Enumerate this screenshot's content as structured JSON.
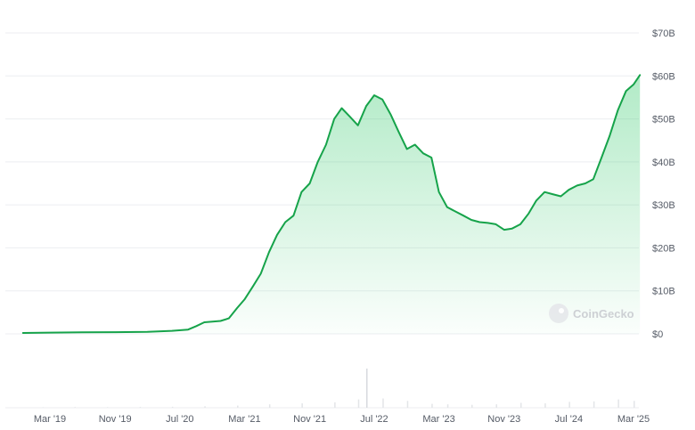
{
  "chart_data": {
    "type": "area",
    "title": "",
    "xlabel": "",
    "ylabel": "",
    "ylim": [
      0,
      70
    ],
    "y_unit": "B USD",
    "y_ticks": [
      0,
      10,
      20,
      30,
      40,
      50,
      60,
      70
    ],
    "y_tick_labels": [
      "$0",
      "$10B",
      "$20B",
      "$30B",
      "$40B",
      "$50B",
      "$60B",
      "$70B"
    ],
    "x_ticks": [
      {
        "date": "2019-03-01",
        "label": "Mar '19"
      },
      {
        "date": "2019-11-01",
        "label": "Nov '19"
      },
      {
        "date": "2020-07-01",
        "label": "Jul '20"
      },
      {
        "date": "2021-03-01",
        "label": "Mar '21"
      },
      {
        "date": "2021-11-01",
        "label": "Nov '21"
      },
      {
        "date": "2022-07-01",
        "label": "Jul '22"
      },
      {
        "date": "2023-03-01",
        "label": "Mar '23"
      },
      {
        "date": "2023-11-01",
        "label": "Nov '23"
      },
      {
        "date": "2024-07-01",
        "label": "Jul '24"
      },
      {
        "date": "2025-03-01",
        "label": "Mar '25"
      }
    ],
    "grid": true,
    "legend": "none",
    "series": [
      {
        "color": "#16a34a",
        "points": [
          [
            "2018-11-20",
            0.2
          ],
          [
            "2019-03-01",
            0.3
          ],
          [
            "2019-07-01",
            0.35
          ],
          [
            "2019-11-01",
            0.4
          ],
          [
            "2020-03-01",
            0.45
          ],
          [
            "2020-06-01",
            0.7
          ],
          [
            "2020-08-01",
            1.0
          ],
          [
            "2020-09-01",
            1.8
          ],
          [
            "2020-10-01",
            2.7
          ],
          [
            "2020-12-01",
            3.0
          ],
          [
            "2021-01-01",
            3.6
          ],
          [
            "2021-02-01",
            6.0
          ],
          [
            "2021-03-01",
            8.0
          ],
          [
            "2021-04-01",
            11.0
          ],
          [
            "2021-05-01",
            14.0
          ],
          [
            "2021-06-01",
            19.0
          ],
          [
            "2021-07-01",
            23.0
          ],
          [
            "2021-08-01",
            26.0
          ],
          [
            "2021-09-01",
            27.5
          ],
          [
            "2021-10-01",
            33.0
          ],
          [
            "2021-11-01",
            35.0
          ],
          [
            "2021-12-01",
            40.0
          ],
          [
            "2022-01-01",
            44.0
          ],
          [
            "2022-02-01",
            50.0
          ],
          [
            "2022-03-01",
            52.5
          ],
          [
            "2022-04-01",
            50.5
          ],
          [
            "2022-05-01",
            48.5
          ],
          [
            "2022-06-01",
            53.0
          ],
          [
            "2022-07-01",
            55.5
          ],
          [
            "2022-08-01",
            54.5
          ],
          [
            "2022-09-01",
            51.0
          ],
          [
            "2022-10-01",
            47.0
          ],
          [
            "2022-11-01",
            43.0
          ],
          [
            "2022-12-01",
            44.0
          ],
          [
            "2023-01-01",
            42.0
          ],
          [
            "2023-02-01",
            41.0
          ],
          [
            "2023-03-01",
            33.0
          ],
          [
            "2023-04-01",
            29.5
          ],
          [
            "2023-05-01",
            28.5
          ],
          [
            "2023-06-01",
            27.5
          ],
          [
            "2023-07-01",
            26.5
          ],
          [
            "2023-08-01",
            26.0
          ],
          [
            "2023-09-01",
            25.8
          ],
          [
            "2023-10-01",
            25.5
          ],
          [
            "2023-11-01",
            24.2
          ],
          [
            "2023-12-01",
            24.5
          ],
          [
            "2024-01-01",
            25.5
          ],
          [
            "2024-02-01",
            28.0
          ],
          [
            "2024-03-01",
            31.0
          ],
          [
            "2024-04-01",
            33.0
          ],
          [
            "2024-05-01",
            32.5
          ],
          [
            "2024-06-01",
            32.0
          ],
          [
            "2024-07-01",
            33.5
          ],
          [
            "2024-08-01",
            34.5
          ],
          [
            "2024-09-01",
            35.0
          ],
          [
            "2024-10-01",
            36.0
          ],
          [
            "2024-11-01",
            41.0
          ],
          [
            "2024-12-01",
            46.0
          ],
          [
            "2025-01-01",
            52.0
          ],
          [
            "2025-02-01",
            56.5
          ],
          [
            "2025-03-01",
            58.0
          ],
          [
            "2025-03-25",
            60.2
          ]
        ]
      }
    ],
    "volume_bars": [
      [
        "2019-02-01",
        0.05
      ],
      [
        "2019-06-01",
        0.07
      ],
      [
        "2019-10-01",
        0.06
      ],
      [
        "2020-02-01",
        0.08
      ],
      [
        "2020-06-01",
        0.1
      ],
      [
        "2020-10-01",
        0.15
      ],
      [
        "2021-02-01",
        0.22
      ],
      [
        "2021-06-01",
        0.35
      ],
      [
        "2021-10-01",
        0.45
      ],
      [
        "2022-02-01",
        0.55
      ],
      [
        "2022-05-01",
        0.85
      ],
      [
        "2022-08-01",
        0.95
      ],
      [
        "2022-11-01",
        0.7
      ],
      [
        "2023-02-01",
        0.4
      ],
      [
        "2023-04-01",
        0.35
      ],
      [
        "2023-07-01",
        0.3
      ],
      [
        "2023-10-01",
        0.35
      ],
      [
        "2024-01-01",
        0.5
      ],
      [
        "2024-04-01",
        0.45
      ],
      [
        "2024-07-01",
        0.6
      ],
      [
        "2024-10-01",
        0.65
      ],
      [
        "2025-01-01",
        0.85
      ],
      [
        "2025-03-01",
        0.7
      ]
    ],
    "volume_spike": {
      "date": "2022-06-01",
      "value": 4.0
    }
  },
  "watermark": {
    "text": "CoinGecko"
  }
}
